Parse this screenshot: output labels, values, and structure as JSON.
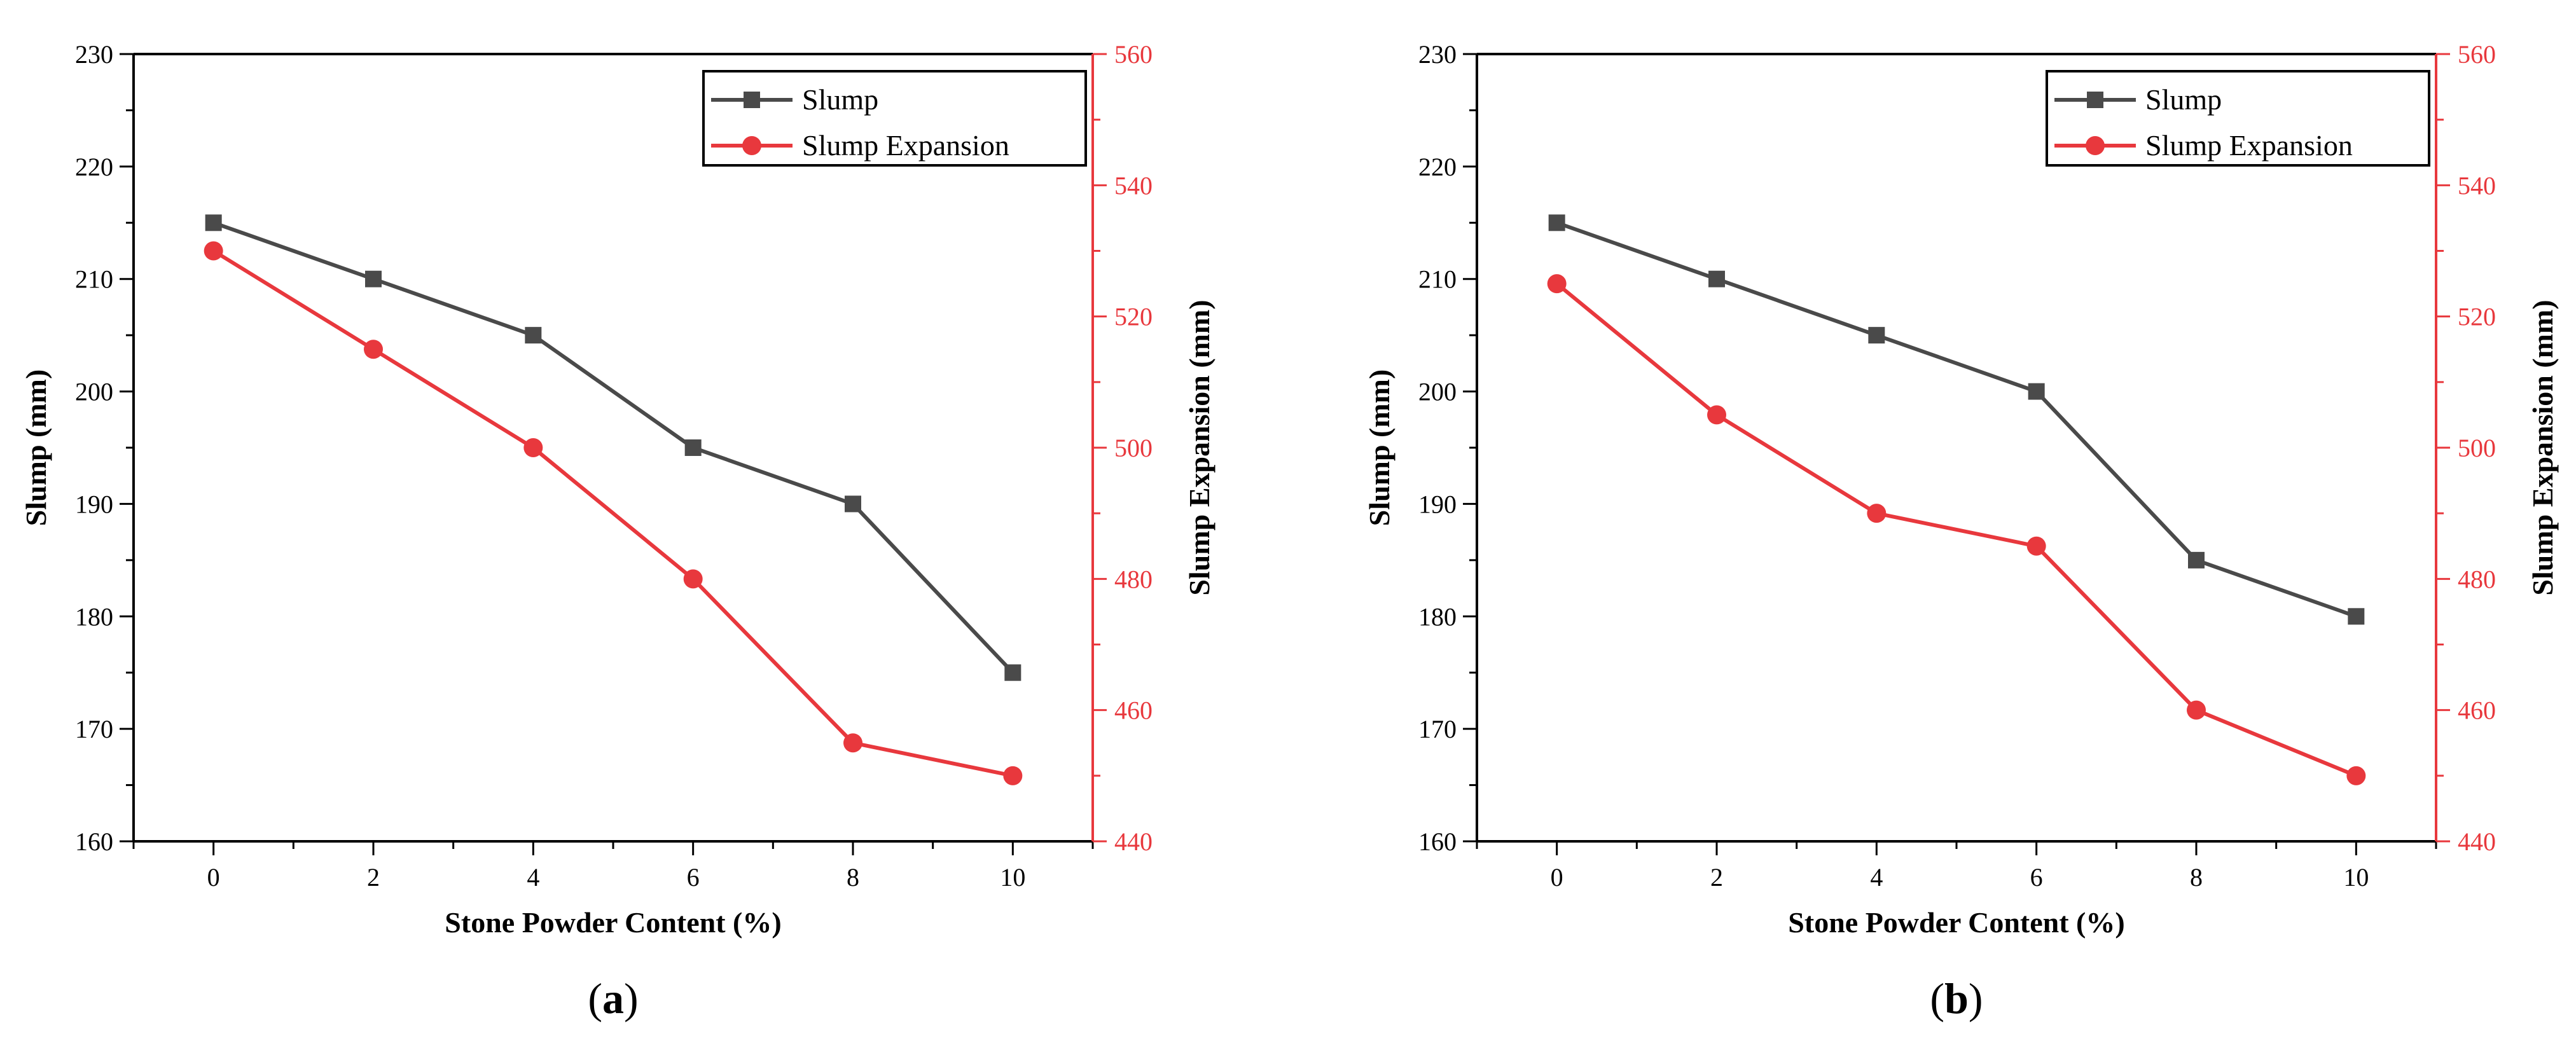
{
  "colors": {
    "slump": "#4a4a4a",
    "expansion": "#e8383d",
    "axis": "#000000"
  },
  "chart_data": [
    {
      "type": "line",
      "panel_label": "a",
      "xlabel": "Stone Powder Content (%)",
      "ylabel": "Slump (mm)",
      "y2label": "Slump Expansion (mm)",
      "x": [
        0,
        2,
        4,
        6,
        8,
        10
      ],
      "xlim": [
        -1,
        11
      ],
      "xticks": [
        0,
        2,
        4,
        6,
        8,
        10
      ],
      "ylim": [
        160,
        230
      ],
      "yticks": [
        160,
        170,
        180,
        190,
        200,
        210,
        220,
        230
      ],
      "y2lim": [
        440,
        560
      ],
      "y2ticks": [
        440,
        460,
        480,
        500,
        520,
        540,
        560
      ],
      "legend_position": "top-right",
      "series": [
        {
          "name": "Slump",
          "axis": "left",
          "marker": "square",
          "values": [
            215,
            210,
            205,
            195,
            190,
            175
          ]
        },
        {
          "name": "Slump Expansion",
          "axis": "right",
          "marker": "circle",
          "values": [
            530,
            515,
            500,
            480,
            455,
            450
          ]
        }
      ]
    },
    {
      "type": "line",
      "panel_label": "b",
      "xlabel": "Stone Powder Content (%)",
      "ylabel": "Slump (mm)",
      "y2label": "Slump Expansion (mm)",
      "x": [
        0,
        2,
        4,
        6,
        8,
        10
      ],
      "xlim": [
        -1,
        11
      ],
      "xticks": [
        0,
        2,
        4,
        6,
        8,
        10
      ],
      "ylim": [
        160,
        230
      ],
      "yticks": [
        160,
        170,
        180,
        190,
        200,
        210,
        220,
        230
      ],
      "y2lim": [
        440,
        560
      ],
      "y2ticks": [
        440,
        460,
        480,
        500,
        520,
        540,
        560
      ],
      "legend_position": "top-right",
      "series": [
        {
          "name": "Slump",
          "axis": "left",
          "marker": "square",
          "values": [
            215,
            210,
            205,
            200,
            185,
            180
          ]
        },
        {
          "name": "Slump Expansion",
          "axis": "right",
          "marker": "circle",
          "values": [
            525,
            505,
            490,
            485,
            460,
            450
          ]
        }
      ]
    }
  ]
}
